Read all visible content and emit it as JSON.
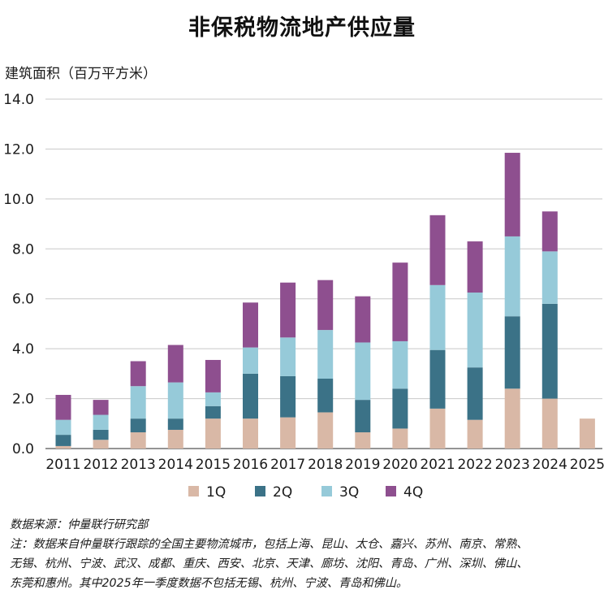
{
  "chart_data": {
    "type": "bar",
    "stacked": true,
    "title": "非保税物流地产供应量",
    "ylabel": "建筑面积（百万平方米）",
    "xlabel": "",
    "ylim": [
      0,
      14
    ],
    "yticks": [
      "0.0",
      "2.0",
      "4.0",
      "6.0",
      "8.0",
      "10.0",
      "12.0",
      "14.0"
    ],
    "grid": true,
    "legend_position": "bottom",
    "categories": [
      "2011",
      "2012",
      "2013",
      "2014",
      "2015",
      "2016",
      "2017",
      "2018",
      "2019",
      "2020",
      "2021",
      "2022",
      "2023",
      "2024",
      "2025"
    ],
    "series": [
      {
        "name": "1Q",
        "color": "#d9b8a6",
        "values": [
          0.1,
          0.35,
          0.65,
          0.75,
          1.2,
          1.2,
          1.25,
          1.45,
          0.65,
          0.8,
          1.6,
          1.15,
          2.4,
          2.0,
          1.2
        ]
      },
      {
        "name": "2Q",
        "color": "#3b7287",
        "values": [
          0.45,
          0.4,
          0.55,
          0.45,
          0.5,
          1.8,
          1.65,
          1.35,
          1.3,
          1.6,
          2.35,
          2.1,
          2.9,
          3.8,
          0
        ]
      },
      {
        "name": "3Q",
        "color": "#96cad9",
        "values": [
          0.6,
          0.6,
          1.3,
          1.45,
          0.55,
          1.05,
          1.55,
          1.95,
          2.3,
          1.9,
          2.6,
          3.0,
          3.2,
          2.1,
          0
        ]
      },
      {
        "name": "4Q",
        "color": "#8e4f8f",
        "values": [
          1.0,
          0.6,
          1.0,
          1.5,
          1.3,
          1.8,
          2.2,
          2.0,
          1.85,
          3.15,
          2.8,
          2.05,
          3.35,
          1.6,
          0
        ]
      }
    ]
  },
  "footer": {
    "source": "数据来源：仲量联行研究部",
    "note_line1": "注：数据来自仲量联行跟踪的全国主要物流城市，包括上海、昆山、太仓、嘉兴、苏州、南京、常熟、",
    "note_line2": "无锡、杭州、宁波、武汉、成都、重庆、西安、北京、天津、廊坊、沈阳、青岛、广州、深圳、佛山、",
    "note_line3": "东莞和惠州。其中2025年一季度数据不包括无锡、杭州、宁波、青岛和佛山。"
  }
}
